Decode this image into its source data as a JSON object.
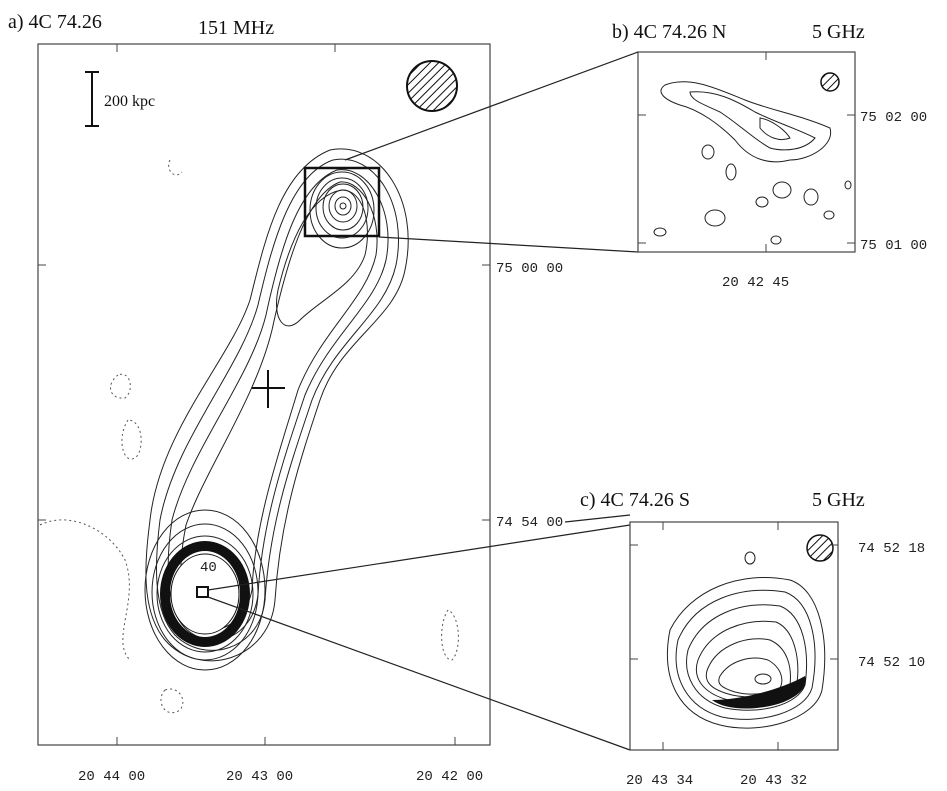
{
  "panels": [
    {
      "label": "a) 4C 74.26",
      "frequency": "151 MHz",
      "scale_bar": "200 kpc",
      "contour_label": "40",
      "x_ticks": [
        "20 44 00",
        "20 43 00",
        "20 42 00"
      ],
      "y_ticks": [
        "75 00 00",
        "74 54 00"
      ]
    },
    {
      "label": "b) 4C 74.26 N",
      "frequency": "5 GHz",
      "x_ticks": [
        "20 42 45"
      ],
      "y_ticks": [
        "75 02 00",
        "75 01 00"
      ]
    },
    {
      "label": "c) 4C 74.26 S",
      "frequency": "5 GHz",
      "x_ticks": [
        "20 43 34",
        "20 43 32"
      ],
      "y_ticks": [
        "74 52 18",
        "74 52 10"
      ]
    }
  ]
}
